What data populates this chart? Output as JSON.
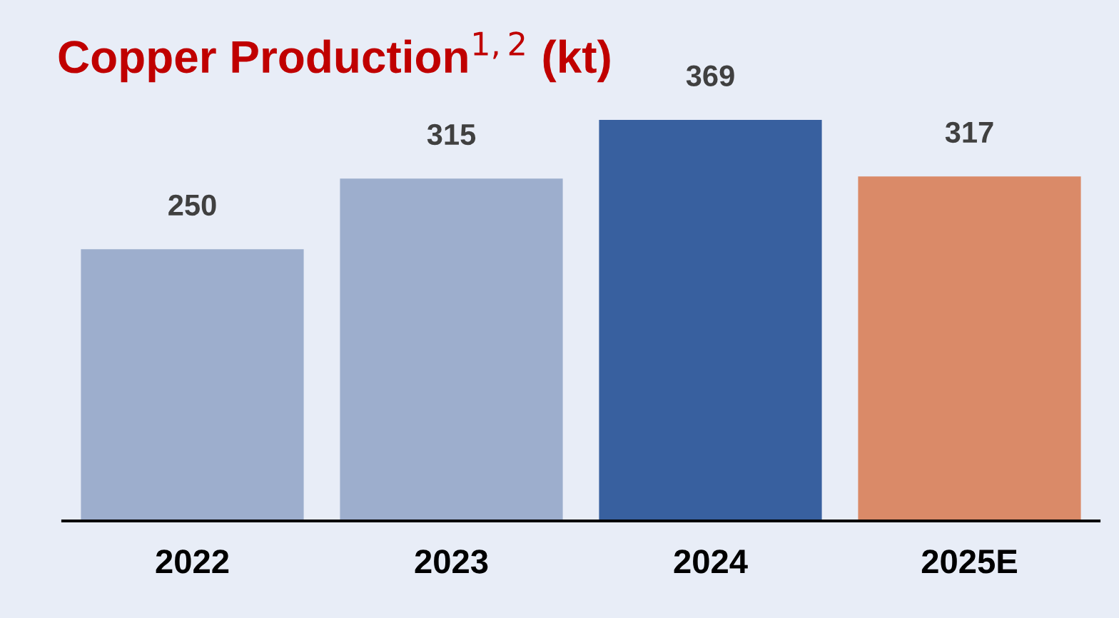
{
  "chart_data": {
    "type": "bar",
    "title": "Copper Production$^{1,2}$ (kt)",
    "categories": [
      "2022",
      "2023",
      "2024",
      "2025E"
    ],
    "values": [
      250,
      315,
      369,
      317
    ],
    "colors": [
      "#9daecd",
      "#9daecd",
      "#38609f",
      "#da8a68"
    ],
    "data_labels": true,
    "grid": false,
    "legend": false
  }
}
